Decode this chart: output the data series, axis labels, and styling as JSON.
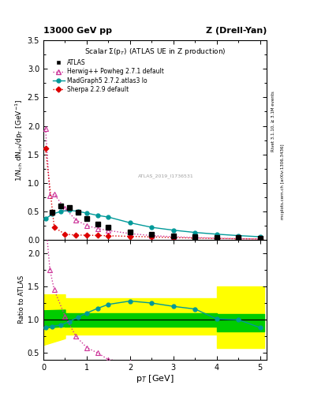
{
  "title_top_left": "13000 GeV pp",
  "title_top_right": "Z (Drell-Yan)",
  "plot_title": "Scalar Σ(p_T) (ATLAS UE in Z production)",
  "ylabel_main": "1/N$_{ch}$ dN$_{ch}$/dp$_T$ [GeV$^{-1}$]",
  "ylabel_ratio": "Ratio to ATLAS",
  "xlabel": "p$_T$ [GeV]",
  "watermark": "ATLAS_2019_I1736531",
  "right_label_top": "Rivet 3.1.10, ≥ 3.1M events",
  "right_label_bottom": "mcplots.cern.ch [arXiv:1306.3436]",
  "atlas_x": [
    0.2,
    0.4,
    0.6,
    0.8,
    1.0,
    1.25,
    1.5,
    2.0,
    2.5,
    3.0,
    3.5,
    4.0,
    4.5,
    5.0
  ],
  "atlas_y": [
    0.48,
    0.6,
    0.57,
    0.48,
    0.38,
    0.28,
    0.22,
    0.145,
    0.1,
    0.075,
    0.055,
    0.045,
    0.035,
    0.028
  ],
  "atlas_yerr": [
    0.025,
    0.035,
    0.03,
    0.025,
    0.02,
    0.015,
    0.012,
    0.008,
    0.006,
    0.005,
    0.004,
    0.003,
    0.003,
    0.002
  ],
  "herwig_x": [
    0.05,
    0.15,
    0.25,
    0.5,
    0.75,
    1.0,
    1.25,
    1.5,
    2.0,
    2.5,
    3.0,
    3.5,
    4.0,
    4.5,
    5.0
  ],
  "herwig_y": [
    1.95,
    0.78,
    0.8,
    0.55,
    0.35,
    0.25,
    0.2,
    0.165,
    0.11,
    0.075,
    0.055,
    0.04,
    0.03,
    0.022,
    0.016
  ],
  "madgraph_x": [
    0.05,
    0.2,
    0.4,
    0.6,
    0.8,
    1.0,
    1.25,
    1.5,
    2.0,
    2.5,
    3.0,
    3.5,
    4.0,
    4.5,
    5.0
  ],
  "madgraph_y": [
    0.37,
    0.45,
    0.5,
    0.52,
    0.5,
    0.47,
    0.43,
    0.4,
    0.3,
    0.22,
    0.17,
    0.13,
    0.1,
    0.075,
    0.055
  ],
  "sherpa_x": [
    0.05,
    0.25,
    0.5,
    0.75,
    1.0,
    1.25,
    1.5,
    2.0,
    2.5,
    3.0,
    3.5,
    4.0,
    4.5,
    5.0
  ],
  "sherpa_y": [
    1.6,
    0.22,
    0.1,
    0.085,
    0.082,
    0.078,
    0.072,
    0.062,
    0.052,
    0.04,
    0.032,
    0.025,
    0.02,
    0.015
  ],
  "ratio_madgraph_x": [
    0.05,
    0.2,
    0.4,
    0.6,
    0.8,
    1.0,
    1.25,
    1.5,
    2.0,
    2.5,
    3.0,
    3.5,
    4.0,
    4.5,
    5.0
  ],
  "ratio_madgraph_y": [
    0.88,
    0.9,
    0.92,
    0.97,
    1.04,
    1.1,
    1.17,
    1.23,
    1.28,
    1.25,
    1.2,
    1.16,
    1.01,
    1.0,
    0.88
  ],
  "ratio_herwig_x": [
    0.05,
    0.15,
    0.25,
    0.5,
    0.75,
    1.0,
    1.25,
    1.5,
    2.0
  ],
  "ratio_herwig_y": [
    2.5,
    1.75,
    1.45,
    1.05,
    0.75,
    0.58,
    0.5,
    0.4,
    0.36
  ],
  "band_yellow_segments": [
    {
      "x": [
        0.0,
        0.5
      ],
      "ylow": [
        0.62,
        0.72
      ],
      "yhigh": [
        1.38,
        1.38
      ]
    },
    {
      "x": [
        0.5,
        4.0
      ],
      "ylow": [
        0.78,
        0.78
      ],
      "yhigh": [
        1.32,
        1.32
      ]
    },
    {
      "x": [
        4.0,
        5.1
      ],
      "ylow": [
        0.58,
        0.58
      ],
      "yhigh": [
        1.5,
        1.5
      ]
    }
  ],
  "band_green_segments": [
    {
      "x": [
        0.0,
        0.5
      ],
      "ylow": [
        0.88,
        0.9
      ],
      "yhigh": [
        1.14,
        1.15
      ]
    },
    {
      "x": [
        0.5,
        4.0
      ],
      "ylow": [
        0.9,
        0.9
      ],
      "yhigh": [
        1.1,
        1.1
      ]
    },
    {
      "x": [
        4.0,
        5.1
      ],
      "ylow": [
        0.82,
        0.82
      ],
      "yhigh": [
        1.08,
        1.08
      ]
    }
  ],
  "atlas_color": "#000000",
  "herwig_color": "#cc3399",
  "madgraph_color": "#009999",
  "sherpa_color": "#dd0000",
  "green_band_color": "#00cc00",
  "yellow_band_color": "#ffff00",
  "ylim_main": [
    0.0,
    3.5
  ],
  "ylim_ratio": [
    0.4,
    2.2
  ],
  "xlim": [
    0.0,
    5.15
  ]
}
